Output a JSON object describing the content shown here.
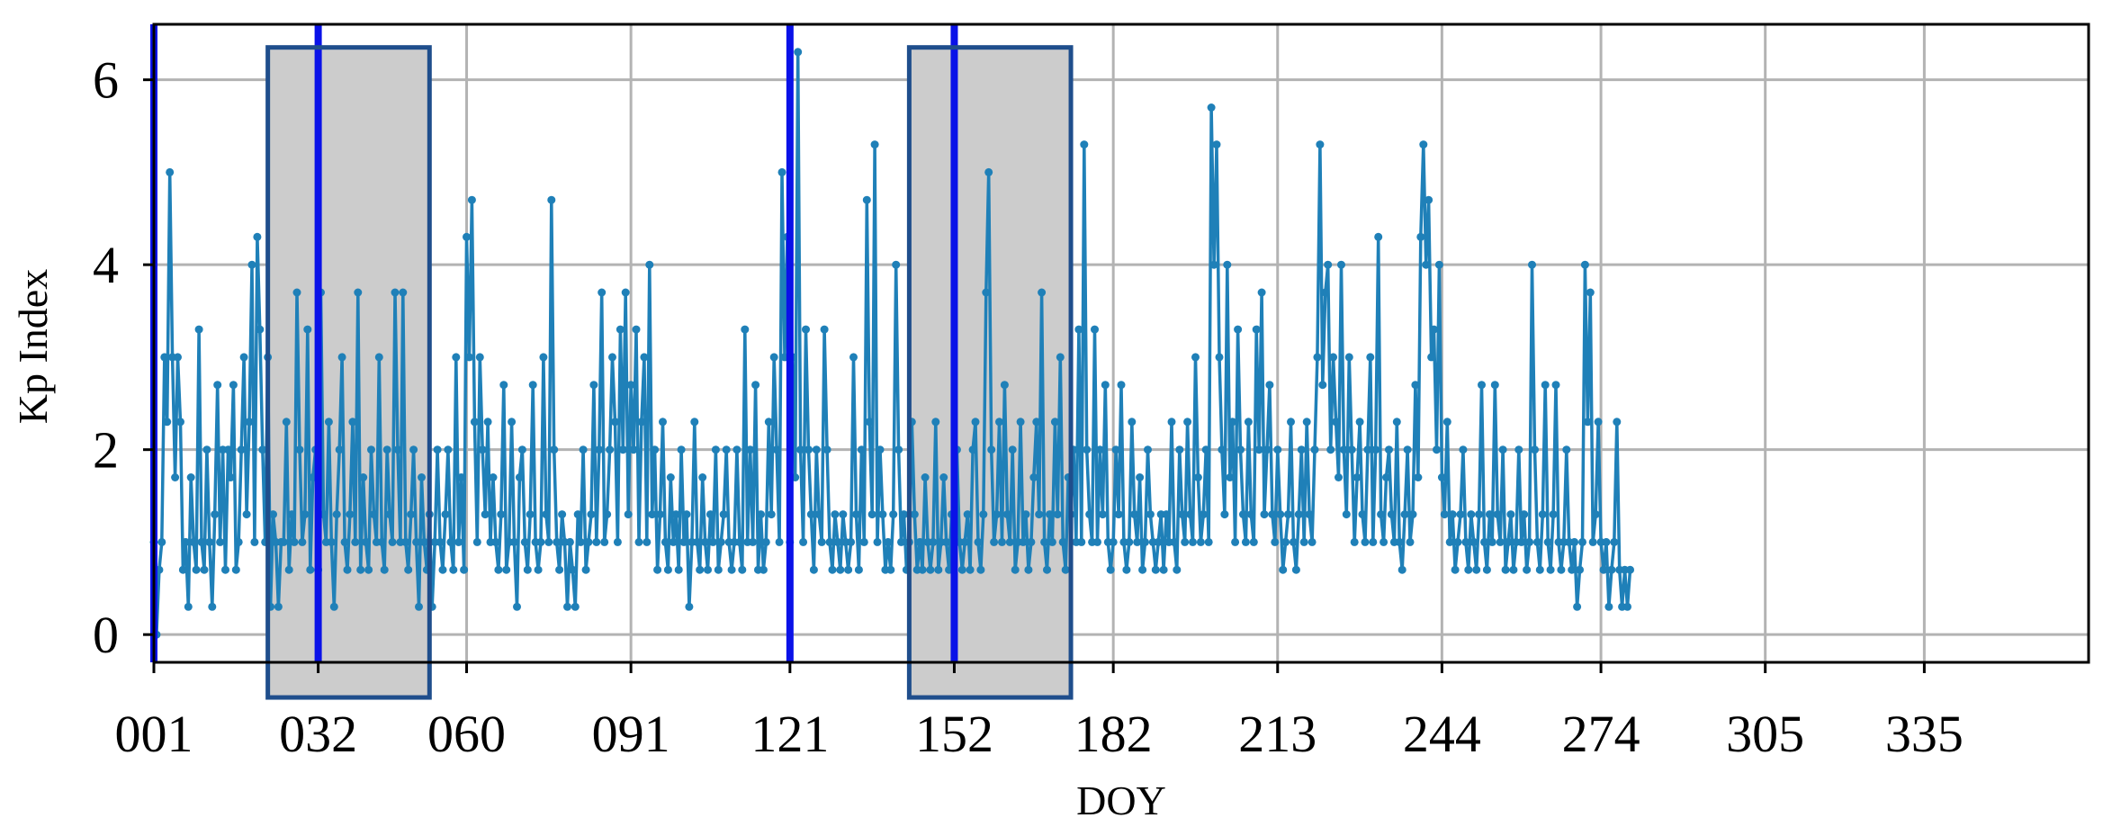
{
  "chart_data": {
    "type": "line",
    "xlabel": "DOY",
    "ylabel": "Kp Index",
    "xlim": [
      1,
      366
    ],
    "ylim": [
      -0.3,
      6.6
    ],
    "x_ticks": [
      {
        "value": 1,
        "label": "001"
      },
      {
        "value": 32,
        "label": "032"
      },
      {
        "value": 60,
        "label": "060"
      },
      {
        "value": 91,
        "label": "091"
      },
      {
        "value": 121,
        "label": "121"
      },
      {
        "value": 152,
        "label": "152"
      },
      {
        "value": 182,
        "label": "182"
      },
      {
        "value": 213,
        "label": "213"
      },
      {
        "value": 244,
        "label": "244"
      },
      {
        "value": 274,
        "label": "274"
      },
      {
        "value": 305,
        "label": "305"
      },
      {
        "value": 335,
        "label": "335"
      }
    ],
    "y_ticks": [
      {
        "value": 0,
        "label": "0"
      },
      {
        "value": 2,
        "label": "2"
      },
      {
        "value": 4,
        "label": "4"
      },
      {
        "value": 6,
        "label": "6"
      }
    ],
    "grid": true,
    "vertical_lines_doy": [
      1,
      32,
      121,
      152
    ],
    "shaded_regions_doy": [
      [
        22.5,
        53
      ],
      [
        143.5,
        174
      ]
    ],
    "series": [
      {
        "color": "#1f80b8",
        "samples_per_day": 2,
        "x_start": 1,
        "values": [
          1.0,
          0.0,
          0.7,
          1.0,
          3.0,
          2.3,
          5.0,
          3.0,
          1.7,
          3.0,
          2.3,
          0.7,
          1.0,
          0.3,
          1.7,
          1.0,
          0.7,
          3.3,
          1.0,
          0.7,
          2.0,
          1.0,
          0.3,
          1.3,
          2.7,
          1.0,
          2.0,
          0.7,
          2.0,
          1.7,
          2.7,
          0.7,
          1.0,
          2.0,
          3.0,
          1.3,
          2.3,
          4.0,
          1.0,
          4.3,
          3.3,
          2.0,
          1.0,
          3.0,
          0.3,
          1.3,
          1.0,
          0.3,
          1.0,
          1.0,
          2.3,
          0.7,
          1.3,
          1.0,
          3.7,
          2.0,
          1.0,
          1.3,
          3.3,
          0.7,
          1.7,
          2.0,
          0.7,
          3.7,
          1.3,
          1.0,
          2.3,
          1.0,
          0.3,
          1.3,
          2.0,
          3.0,
          1.0,
          0.7,
          1.3,
          2.3,
          1.0,
          3.7,
          0.7,
          1.7,
          1.0,
          0.7,
          2.0,
          1.3,
          1.0,
          3.0,
          1.0,
          0.7,
          2.0,
          1.3,
          1.0,
          3.7,
          2.0,
          1.0,
          3.7,
          1.0,
          0.7,
          1.3,
          2.0,
          1.0,
          0.3,
          1.7,
          1.0,
          0.7,
          1.3,
          0.3,
          1.0,
          2.0,
          1.0,
          0.7,
          1.3,
          2.0,
          1.0,
          0.7,
          3.0,
          1.0,
          1.7,
          0.7,
          4.3,
          3.0,
          4.7,
          2.3,
          1.0,
          3.0,
          2.0,
          1.3,
          2.3,
          1.0,
          1.7,
          1.0,
          0.7,
          1.3,
          2.7,
          0.7,
          1.0,
          2.3,
          1.0,
          0.3,
          1.7,
          2.0,
          1.0,
          0.7,
          1.3,
          2.7,
          1.0,
          0.7,
          1.0,
          3.0,
          1.3,
          1.0,
          4.7,
          2.0,
          1.0,
          0.7,
          1.3,
          1.0,
          0.3,
          1.0,
          0.7,
          0.3,
          1.3,
          1.0,
          2.0,
          0.7,
          1.0,
          1.3,
          2.7,
          1.0,
          2.0,
          3.7,
          1.0,
          1.3,
          2.0,
          3.0,
          2.3,
          1.0,
          3.3,
          2.0,
          3.7,
          1.3,
          2.7,
          2.0,
          3.3,
          1.0,
          2.3,
          3.0,
          1.0,
          4.0,
          1.3,
          2.0,
          0.7,
          1.3,
          2.3,
          1.0,
          0.7,
          1.7,
          1.0,
          1.3,
          0.7,
          2.0,
          1.0,
          1.3,
          0.3,
          1.0,
          2.3,
          1.0,
          0.7,
          1.7,
          1.0,
          0.7,
          1.3,
          1.0,
          2.0,
          0.7,
          1.0,
          1.3,
          2.0,
          1.0,
          0.7,
          1.0,
          2.0,
          1.0,
          0.7,
          3.3,
          1.0,
          2.0,
          1.0,
          2.7,
          0.7,
          1.3,
          0.7,
          1.0,
          2.3,
          1.3,
          3.0,
          2.0,
          1.0,
          5.0,
          3.0,
          4.3,
          1.0,
          3.0,
          1.7,
          6.3,
          2.0,
          1.0,
          3.3,
          2.0,
          1.3,
          0.7,
          2.0,
          1.3,
          1.0,
          3.3,
          2.0,
          1.0,
          0.7,
          1.3,
          1.0,
          0.7,
          1.3,
          1.0,
          0.7,
          1.0,
          3.0,
          1.3,
          0.7,
          2.0,
          1.0,
          4.7,
          2.3,
          1.3,
          5.3,
          1.0,
          2.0,
          1.3,
          0.7,
          1.0,
          0.7,
          1.3,
          4.0,
          2.0,
          1.0,
          1.3,
          0.7,
          1.0,
          2.3,
          1.3,
          0.7,
          1.0,
          0.7,
          1.7,
          1.0,
          0.7,
          1.0,
          2.3,
          0.7,
          1.0,
          1.7,
          1.0,
          0.7,
          1.3,
          1.0,
          2.0,
          1.0,
          0.7,
          1.0,
          1.3,
          0.7,
          2.0,
          2.3,
          1.0,
          0.7,
          1.3,
          3.7,
          5.0,
          2.0,
          1.0,
          1.3,
          2.3,
          1.0,
          2.7,
          1.3,
          1.0,
          2.0,
          0.7,
          1.0,
          2.3,
          1.0,
          1.3,
          0.7,
          1.0,
          1.7,
          2.3,
          1.3,
          3.7,
          1.0,
          0.7,
          1.3,
          1.0,
          2.3,
          1.3,
          3.0,
          1.0,
          0.7,
          1.7,
          1.3,
          2.0,
          1.0,
          3.3,
          1.0,
          5.3,
          2.0,
          1.3,
          1.0,
          3.3,
          1.0,
          2.0,
          1.3,
          2.7,
          1.0,
          0.7,
          1.0,
          2.0,
          1.3,
          2.7,
          1.0,
          0.7,
          1.0,
          2.3,
          1.3,
          1.0,
          1.7,
          0.7,
          1.0,
          2.0,
          1.3,
          1.0,
          0.7,
          1.0,
          1.3,
          0.7,
          1.3,
          1.0,
          2.3,
          1.0,
          0.7,
          2.0,
          1.3,
          1.0,
          2.3,
          1.3,
          1.0,
          3.0,
          1.7,
          1.0,
          1.3,
          2.0,
          1.0,
          5.7,
          4.0,
          5.3,
          3.0,
          2.0,
          1.3,
          4.0,
          1.7,
          2.3,
          1.0,
          3.3,
          2.0,
          1.3,
          1.0,
          2.3,
          1.3,
          1.0,
          3.3,
          2.0,
          3.7,
          1.3,
          2.0,
          2.7,
          1.3,
          1.0,
          2.0,
          1.3,
          0.7,
          1.0,
          1.3,
          2.3,
          1.0,
          0.7,
          1.3,
          2.0,
          1.0,
          2.3,
          1.3,
          1.0,
          2.0,
          3.0,
          5.3,
          2.7,
          3.7,
          4.0,
          2.0,
          3.0,
          2.3,
          1.7,
          4.0,
          2.0,
          1.3,
          3.0,
          2.0,
          1.0,
          1.7,
          2.3,
          1.3,
          1.0,
          2.0,
          3.0,
          1.0,
          2.0,
          4.3,
          1.3,
          1.0,
          1.7,
          2.0,
          1.3,
          1.0,
          2.3,
          1.0,
          0.7,
          1.3,
          2.0,
          1.0,
          1.3,
          2.7,
          1.7,
          4.3,
          5.3,
          4.0,
          4.7,
          3.0,
          3.3,
          2.0,
          4.0,
          1.7,
          1.3,
          2.3,
          1.0,
          1.3,
          0.7,
          1.0,
          1.3,
          2.0,
          1.0,
          0.7,
          1.3,
          1.0,
          0.7,
          1.3,
          2.7,
          1.0,
          0.7,
          1.3,
          1.0,
          2.7,
          1.3,
          1.0,
          2.0,
          0.7,
          1.0,
          1.3,
          0.7,
          1.0,
          2.0,
          1.0,
          1.3,
          0.7,
          1.0,
          4.0,
          2.0,
          1.0,
          0.7,
          1.3,
          2.7,
          1.0,
          0.7,
          1.3,
          2.7,
          1.0,
          0.7,
          1.0,
          2.0,
          1.0,
          0.7,
          1.0,
          0.3,
          0.7,
          1.0,
          4.0,
          2.3,
          3.7,
          1.0,
          1.3,
          2.3,
          1.0,
          0.7,
          1.0,
          0.3,
          0.7,
          1.0,
          2.3,
          0.7,
          0.3,
          0.7,
          0.3,
          0.7
        ]
      }
    ]
  }
}
